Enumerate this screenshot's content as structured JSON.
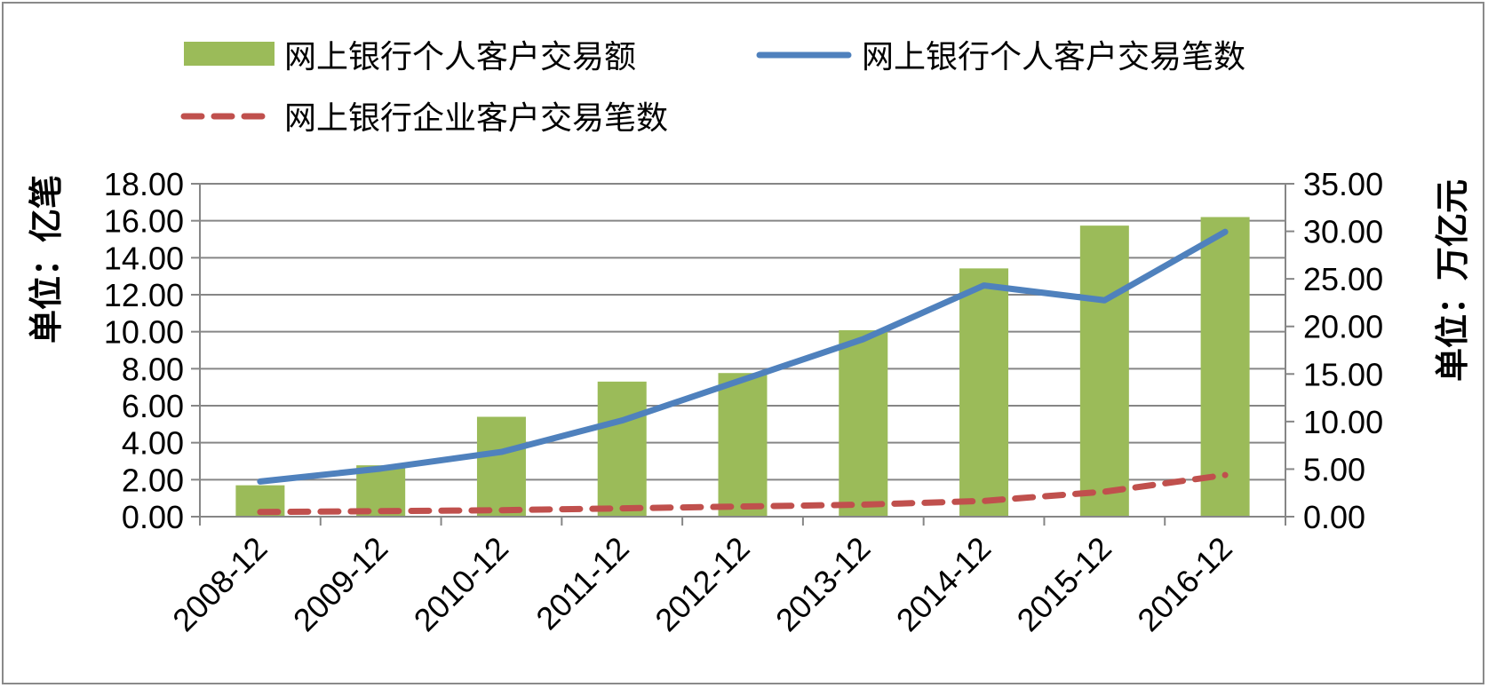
{
  "colors": {
    "bar": "#9bbb59",
    "line_personal": "#4f81bd",
    "line_enterprise": "#c0504d",
    "grid": "#868686",
    "axis": "#868686"
  },
  "legend": [
    {
      "label": "网上银行个人客户交易额",
      "kind": "bar"
    },
    {
      "label": "网上银行个人客户交易笔数",
      "kind": "line"
    },
    {
      "label": "网上银行企业客户交易笔数",
      "kind": "dashed-line"
    }
  ],
  "chart_data": {
    "type": "bar",
    "categories": [
      "2008-12",
      "2009-12",
      "2010-12",
      "2011-12",
      "2012-12",
      "2013-12",
      "2014-12",
      "2015-12",
      "2016-12"
    ],
    "left_axis": {
      "label": "单位：亿笔",
      "ylim": [
        0,
        18
      ],
      "ticks": [
        "0.00",
        "2.00",
        "4.00",
        "6.00",
        "8.00",
        "10.00",
        "12.00",
        "14.00",
        "16.00",
        "18.00"
      ]
    },
    "right_axis": {
      "label": "单位：万亿元",
      "ylim": [
        0,
        35
      ],
      "ticks": [
        "0.00",
        "5.00",
        "10.00",
        "15.00",
        "20.00",
        "25.00",
        "30.00",
        "35.00"
      ]
    },
    "series": [
      {
        "name": "网上银行个人客户交易额",
        "type": "bar",
        "axis": "right",
        "values": [
          3.3,
          5.4,
          10.5,
          14.2,
          15.1,
          19.6,
          26.1,
          30.6,
          31.5
        ]
      },
      {
        "name": "网上银行个人客户交易笔数",
        "type": "line",
        "axis": "left",
        "values": [
          1.9,
          2.6,
          3.5,
          5.2,
          7.4,
          9.6,
          12.5,
          11.7,
          15.4
        ]
      },
      {
        "name": "网上银行企业客户交易笔数",
        "type": "dashed-line",
        "axis": "left",
        "values": [
          0.25,
          0.3,
          0.35,
          0.45,
          0.55,
          0.65,
          0.85,
          1.35,
          2.25
        ]
      }
    ],
    "grid": true,
    "legend_position": "top"
  }
}
